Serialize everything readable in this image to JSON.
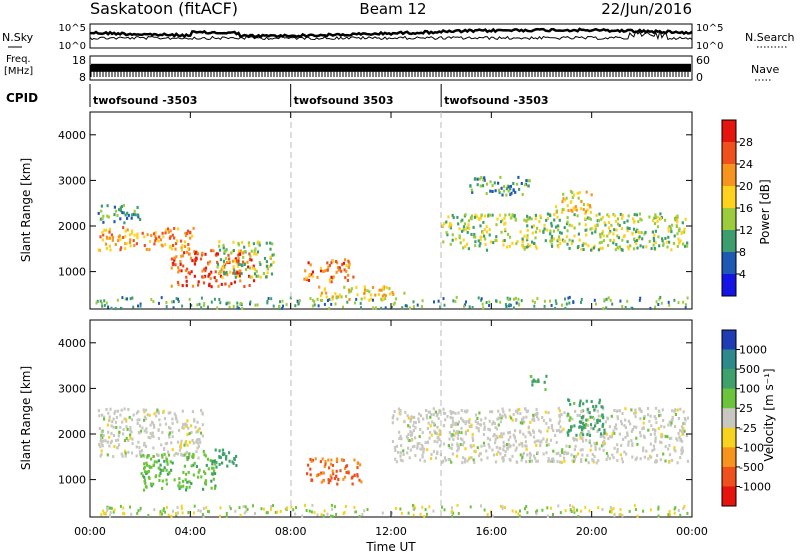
{
  "header": {
    "station": "Saskatoon (fitACF)",
    "beam": "Beam 12",
    "date": "22/Jun/2016"
  },
  "noise_panel": {
    "left_label": "N.Sky",
    "right_label": "N.Search",
    "ticks_left": [
      "10^5",
      "10^0"
    ],
    "ticks_right": [
      "10^5",
      "10^0"
    ]
  },
  "freq_panel": {
    "left_label_1": "Freq.",
    "left_label_2": "[MHz]",
    "right_label": "Nave",
    "ticks_left": [
      "18",
      "8"
    ],
    "ticks_right": [
      "60",
      "0"
    ],
    "freq_level": 0.55
  },
  "cpid": {
    "label": "CPID",
    "segments": [
      {
        "name": "twofsound -3503",
        "start_hour": 0,
        "end_hour": 8
      },
      {
        "name": "twofsound 3503",
        "start_hour": 8,
        "end_hour": 14
      },
      {
        "name": "twofsound -3503",
        "start_hour": 14,
        "end_hour": 24
      }
    ]
  },
  "axes": {
    "ylabel": "Slant Range [km]",
    "yticks": [
      "4000",
      "3000",
      "2000",
      "1000"
    ],
    "xticks": [
      "00:00",
      "04:00",
      "08:00",
      "12:00",
      "16:00",
      "20:00",
      "00:00"
    ],
    "xlabel": "Time UT"
  },
  "power_colorbar": {
    "label": "Power [dB]",
    "ticks": [
      "28",
      "24",
      "20",
      "16",
      "12",
      "8",
      "4"
    ],
    "colors": [
      "#e6140f",
      "#f0501e",
      "#f7941d",
      "#ffd21e",
      "#9ccc3c",
      "#3c9e6e",
      "#1e5ab4",
      "#1414e6"
    ]
  },
  "velocity_colorbar": {
    "label": "Velocity [m s⁻¹]",
    "ticks": [
      "1000",
      "500",
      "100",
      "25",
      "-25",
      "-100",
      "-500",
      "-1000"
    ],
    "colors": [
      "#1e3cb4",
      "#2e8a8a",
      "#3ea06a",
      "#6cc43c",
      "#c8c8c0",
      "#f7d21e",
      "#f7941d",
      "#f0501e",
      "#e6140f"
    ]
  },
  "chart_data": {
    "type": "heatmap",
    "x_range_hours": [
      0,
      24
    ],
    "y_range_km": [
      180,
      4500
    ],
    "panels": [
      {
        "name": "Power",
        "units": "dB",
        "scatter_features": [
          {
            "t0": 0.3,
            "t1": 4.2,
            "r0": 1500,
            "r1": 2000,
            "level": 22
          },
          {
            "t0": 0.3,
            "t1": 2.0,
            "r0": 2100,
            "r1": 2500,
            "level": 10
          },
          {
            "t0": 3.2,
            "t1": 6.5,
            "r0": 700,
            "r1": 1500,
            "level": 26
          },
          {
            "t0": 5.0,
            "t1": 7.3,
            "r0": 900,
            "r1": 1700,
            "level": 14
          },
          {
            "t0": 8.5,
            "t1": 10.5,
            "r0": 800,
            "r1": 1300,
            "level": 24
          },
          {
            "t0": 9.0,
            "t1": 12.5,
            "r0": 400,
            "r1": 700,
            "level": 18
          },
          {
            "t0": 14.0,
            "t1": 23.8,
            "r0": 1500,
            "r1": 2300,
            "level": 14
          },
          {
            "t0": 15.0,
            "t1": 17.5,
            "r0": 2700,
            "r1": 3100,
            "level": 10
          },
          {
            "t0": 18.5,
            "t1": 20.0,
            "r0": 2300,
            "r1": 2800,
            "level": 18
          }
        ]
      },
      {
        "name": "Velocity",
        "units": "m s^-1",
        "scatter_features": [
          {
            "t0": 0.3,
            "t1": 4.5,
            "r0": 1500,
            "r1": 2600,
            "level": 0
          },
          {
            "t0": 2.0,
            "t1": 5.0,
            "r0": 800,
            "r1": 1600,
            "level": 80
          },
          {
            "t0": 4.5,
            "t1": 5.8,
            "r0": 1300,
            "r1": 1700,
            "level": 300
          },
          {
            "t0": 8.6,
            "t1": 10.8,
            "r0": 900,
            "r1": 1500,
            "level": -600
          },
          {
            "t0": 12.0,
            "t1": 23.8,
            "r0": 1400,
            "r1": 2600,
            "level": 0
          },
          {
            "t0": 17.5,
            "t1": 18.2,
            "r0": 3000,
            "r1": 3300,
            "level": 120
          },
          {
            "t0": 19.0,
            "t1": 20.5,
            "r0": 2000,
            "r1": 2800,
            "level": 150
          }
        ]
      }
    ]
  }
}
